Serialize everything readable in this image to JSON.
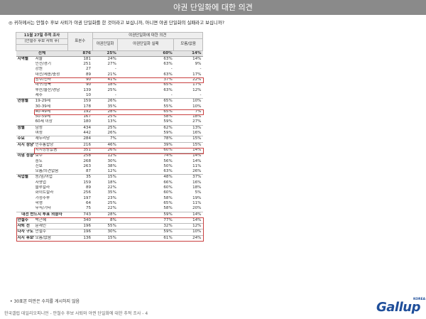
{
  "header": {
    "title": "야권 단일화에 대한 의견"
  },
  "question": "◎ 귀하께서는 안철수 후보 사퇴가 야권 단일화를 한 것이라고 보십니까, 아니면 야권 단일화의 실패라고 보십니까?",
  "table": {
    "survey_label": "11월 27일 추적 조사",
    "survey_sub": "(안철수 후보 사퇴 후)",
    "n_header": "표본수",
    "group_header": "야권단일화에 대한 의견",
    "col_headers": [
      "야권단일화",
      "야권단일화 실패",
      "모름/없음"
    ],
    "rows": [
      {
        "g": "",
        "l": "전체",
        "n": "876",
        "v": [
          "25%",
          "60%",
          "14%"
        ],
        "total": true
      },
      {
        "g": "지역별",
        "l": "서울",
        "n": "181",
        "v": [
          "24%",
          "63%",
          "14%"
        ]
      },
      {
        "g": "",
        "l": "인천/경기",
        "n": "251",
        "v": [
          "27%",
          "63%",
          "9%"
        ]
      },
      {
        "g": "",
        "l": "강원",
        "n": "27",
        "v": [
          "-",
          "-",
          "-"
        ]
      },
      {
        "g": "",
        "l": "대전/세종/충청",
        "n": "89",
        "v": [
          "21%",
          "63%",
          "17%"
        ]
      },
      {
        "g": "",
        "l": "광주/전라",
        "n": "90",
        "v": [
          "41%",
          "37%",
          "22%"
        ],
        "hl": true
      },
      {
        "g": "",
        "l": "대구/경북",
        "n": "90",
        "v": [
          "18%",
          "65%",
          "17%"
        ]
      },
      {
        "g": "",
        "l": "부산/울산/경남",
        "n": "139",
        "v": [
          "25%",
          "63%",
          "12%"
        ]
      },
      {
        "g": "",
        "l": "제주",
        "n": "10",
        "v": [
          "-",
          "-",
          "-"
        ]
      },
      {
        "g": "연령별",
        "l": "19-29세",
        "n": "159",
        "v": [
          "26%",
          "65%",
          "10%"
        ]
      },
      {
        "g": "",
        "l": "30-39세",
        "n": "178",
        "v": [
          "35%",
          "55%",
          "10%"
        ]
      },
      {
        "g": "",
        "l": "40-49세",
        "n": "192",
        "v": [
          "28%",
          "65%",
          "7%"
        ],
        "hl": true
      },
      {
        "g": "",
        "l": "50-59세",
        "n": "167",
        "v": [
          "25%",
          "58%",
          "18%"
        ]
      },
      {
        "g": "",
        "l": "60세 이상",
        "n": "180",
        "v": [
          "13%",
          "59%",
          "27%"
        ]
      },
      {
        "g": "성별",
        "l": "남성",
        "n": "434",
        "v": [
          "25%",
          "62%",
          "13%"
        ]
      },
      {
        "g": "",
        "l": "여성",
        "n": "442",
        "v": [
          "26%",
          "59%",
          "16%"
        ]
      },
      {
        "g": "주요",
        "l": "새누리당",
        "n": "284",
        "v": [
          "7%",
          "78%",
          "15%"
        ]
      },
      {
        "g": "지지 정당별",
        "l": "민주통합당",
        "n": "216",
        "v": [
          "46%",
          "39%",
          "15%"
        ]
      },
      {
        "g": "",
        "l": "지지정당없음",
        "n": "351",
        "v": [
          "26%",
          "60%",
          "14%"
        ],
        "hl": true
      },
      {
        "g": "이념 성향별",
        "l": "보수",
        "n": "258",
        "v": [
          "12%",
          "74%",
          "14%"
        ]
      },
      {
        "g": "",
        "l": "중도",
        "n": "268",
        "v": [
          "30%",
          "56%",
          "14%"
        ]
      },
      {
        "g": "",
        "l": "진보",
        "n": "263",
        "v": [
          "38%",
          "50%",
          "11%"
        ]
      },
      {
        "g": "",
        "l": "모름/의견없음",
        "n": "87",
        "v": [
          "12%",
          "63%",
          "26%"
        ]
      },
      {
        "g": "직업별",
        "l": "농/임/어업",
        "n": "35",
        "v": [
          "15%",
          "48%",
          "37%"
        ]
      },
      {
        "g": "",
        "l": "자영업",
        "n": "159",
        "v": [
          "18%",
          "66%",
          "16%"
        ]
      },
      {
        "g": "",
        "l": "블루칼라",
        "n": "89",
        "v": [
          "22%",
          "60%",
          "18%"
        ]
      },
      {
        "g": "",
        "l": "화이트칼라",
        "n": "256",
        "v": [
          "35%",
          "60%",
          "5%"
        ]
      },
      {
        "g": "",
        "l": "가정주부",
        "n": "197",
        "v": [
          "23%",
          "58%",
          "19%"
        ]
      },
      {
        "g": "",
        "l": "학생",
        "n": "64",
        "v": [
          "25%",
          "65%",
          "11%"
        ]
      },
      {
        "g": "",
        "l": "무직/기타",
        "n": "75",
        "v": [
          "22%",
          "58%",
          "20%"
        ]
      },
      {
        "g": "대선 반드시 투표 의향자",
        "l": "",
        "n": "743",
        "v": [
          "28%",
          "59%",
          "14%"
        ],
        "span": true
      },
      {
        "g": "안철수",
        "l": "박근혜",
        "n": "340",
        "v": [
          "8%",
          "77%",
          "14%"
        ]
      },
      {
        "g": "사퇴 전",
        "l": "문재인",
        "n": "196",
        "v": [
          "55%",
          "32%",
          "12%"
        ]
      },
      {
        "g": "다자 구도",
        "l": "안철수",
        "n": "196",
        "v": [
          "30%",
          "59%",
          "10%"
        ]
      },
      {
        "g": "지지 후보별",
        "l": "모름/없음",
        "n": "136",
        "v": [
          "15%",
          "61%",
          "24%"
        ]
      }
    ]
  },
  "footnote": "• 30표본 미만은 수치를 게시하지 않음",
  "source": "한국갤럽 데일리오피니언 - 안철수 후보 사퇴와 야권 단일화에 대한 추적 조사 - 4",
  "logo": {
    "text": "Gallup",
    "sub": "KOREA"
  }
}
